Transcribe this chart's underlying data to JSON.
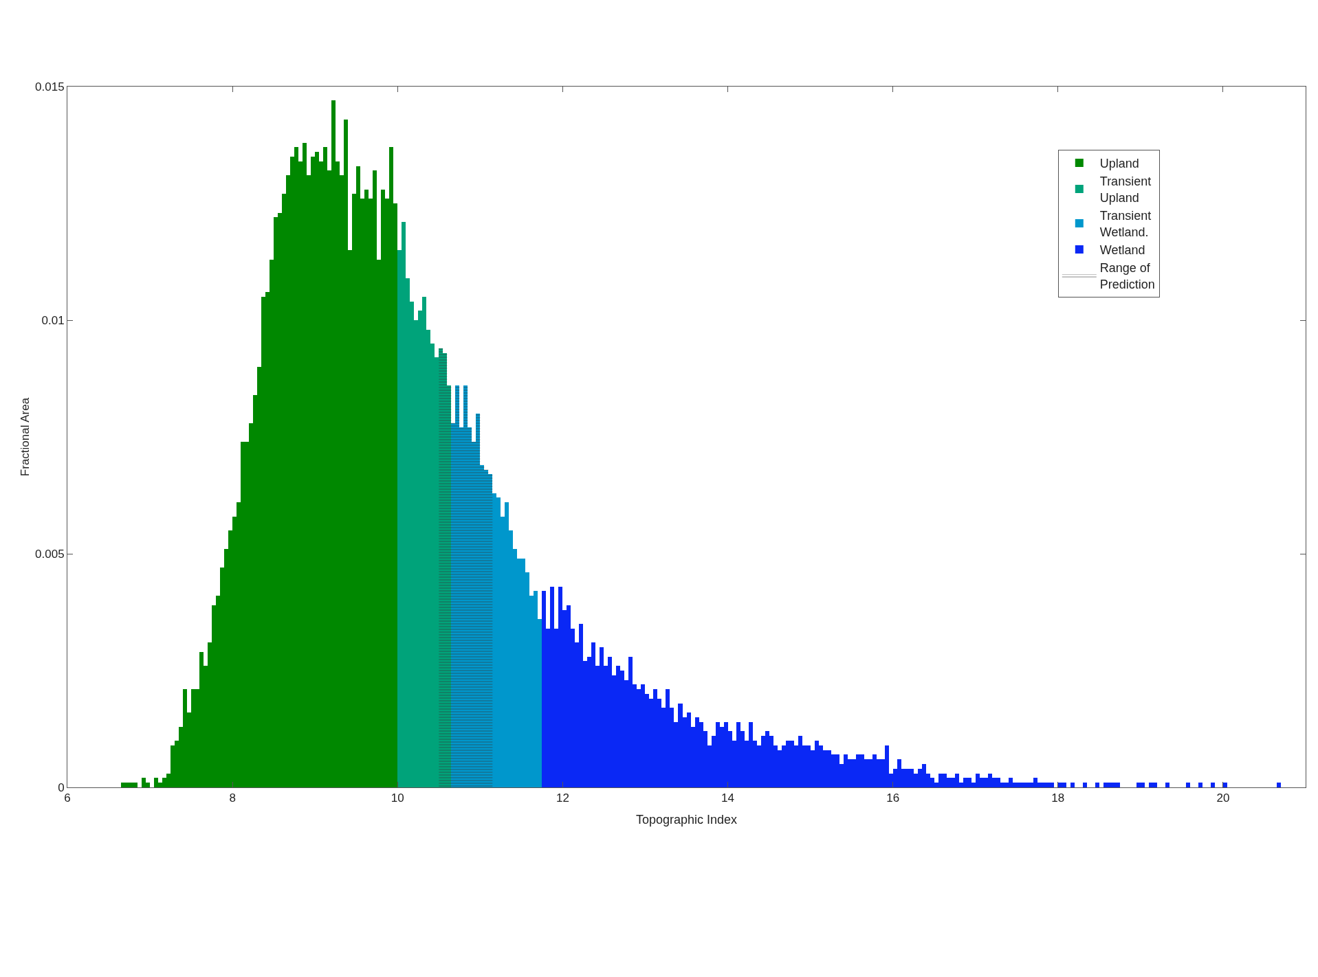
{
  "chart_data": {
    "type": "histogram",
    "xlabel": "Topographic Index",
    "ylabel": "Fractional Area",
    "xlim": [
      6,
      21
    ],
    "xticks": [
      6,
      8,
      10,
      12,
      14,
      16,
      18,
      20
    ],
    "ylim": [
      0,
      0.015
    ],
    "yticks": [
      0,
      0.005,
      0.01,
      0.015
    ],
    "legend": "top right",
    "bins": [
      6.65,
      6.7,
      6.75,
      6.8,
      6.85,
      6.9,
      6.95,
      7.0,
      7.05,
      7.1,
      7.15,
      7.2,
      7.25,
      7.3,
      7.35,
      7.4,
      7.45,
      7.5,
      7.55,
      7.6,
      7.65,
      7.7,
      7.75,
      7.8,
      7.85,
      7.9,
      7.95,
      8.0,
      8.05,
      8.1,
      8.15,
      8.2,
      8.25,
      8.3,
      8.35,
      8.4,
      8.45,
      8.5,
      8.55,
      8.6,
      8.65,
      8.7,
      8.75,
      8.8,
      8.85,
      8.9,
      8.95,
      9.0,
      9.05,
      9.1,
      9.15,
      9.2,
      9.25,
      9.3,
      9.35,
      9.4,
      9.45,
      9.5,
      9.55,
      9.6,
      9.65,
      9.7,
      9.75,
      9.8,
      9.85,
      9.9,
      9.95,
      10.0,
      10.05,
      10.1,
      10.15,
      10.2,
      10.25,
      10.3,
      10.35,
      10.4,
      10.45,
      10.5,
      10.55,
      10.6,
      10.65,
      10.7,
      10.75,
      10.8,
      10.85,
      10.9,
      10.95,
      11.0,
      11.05,
      11.1,
      11.15,
      11.2,
      11.25,
      11.3,
      11.35,
      11.4,
      11.45,
      11.5,
      11.55,
      11.6,
      11.65,
      11.7,
      11.75,
      11.8,
      11.85,
      11.9,
      11.95,
      12.0,
      12.05,
      12.1,
      12.15,
      12.2,
      12.25,
      12.3,
      12.35,
      12.4,
      12.45,
      12.5,
      12.55,
      12.6,
      12.65,
      12.7,
      12.75,
      12.8,
      12.85,
      12.9,
      12.95,
      13.0,
      13.05,
      13.1,
      13.15,
      13.2,
      13.25,
      13.3,
      13.35,
      13.4,
      13.45,
      13.5,
      13.55,
      13.6,
      13.65,
      13.7,
      13.75,
      13.8,
      13.85,
      13.9,
      13.95,
      14.0,
      14.05,
      14.1,
      14.15,
      14.2,
      14.25,
      14.3,
      14.35,
      14.4,
      14.45,
      14.5,
      14.55,
      14.6,
      14.65,
      14.7,
      14.75,
      14.8,
      14.85,
      14.9,
      14.95,
      15.0,
      15.05,
      15.1,
      15.15,
      15.2,
      15.25,
      15.3,
      15.35,
      15.4,
      15.45,
      15.5,
      15.55,
      15.6,
      15.65,
      15.7,
      15.75,
      15.8,
      15.85,
      15.9,
      15.95,
      16.0,
      16.05,
      16.1,
      16.15,
      16.2,
      16.25,
      16.3,
      16.35,
      16.4,
      16.45,
      16.5,
      16.55,
      16.6,
      16.65,
      16.7,
      16.75,
      16.8,
      16.85,
      16.9,
      16.95,
      17.0,
      17.05,
      17.1,
      17.15,
      17.2,
      17.25,
      17.3,
      17.35,
      17.4,
      17.45,
      17.5,
      17.55,
      17.6,
      17.65,
      17.7,
      17.75,
      17.8,
      17.85,
      17.9,
      17.95,
      18.0,
      18.05,
      18.1,
      18.15,
      18.2,
      18.25,
      18.3,
      18.35,
      18.4,
      18.45,
      18.5,
      18.55,
      18.6,
      18.65,
      18.7,
      18.75,
      18.8,
      18.85,
      18.9,
      18.95,
      19.0,
      19.05,
      19.1,
      19.15,
      19.2,
      19.25,
      19.3,
      19.35,
      19.4,
      19.45,
      19.5,
      19.55,
      19.6,
      19.65,
      19.7,
      19.75,
      19.8,
      19.85,
      19.9,
      19.95,
      20.0,
      20.05,
      20.1,
      20.15,
      20.2,
      20.25,
      20.3,
      20.35,
      20.4,
      20.45,
      20.5,
      20.55,
      20.6,
      20.65,
      20.7
    ],
    "series": [
      {
        "name": "Upland",
        "color": "#008800",
        "values": [
          0.0001,
          0.0001,
          0.0001,
          0.0001,
          0.0,
          0.0002,
          0.0001,
          0.0,
          0.0002,
          0.0001,
          0.0002,
          0.0003,
          0.0009,
          0.001,
          0.0013,
          0.0021,
          0.0016,
          0.0021,
          0.0021,
          0.0029,
          0.0026,
          0.0031,
          0.0039,
          0.0041,
          0.0047,
          0.0051,
          0.0055,
          0.0058,
          0.0061,
          0.0074,
          0.0074,
          0.0078,
          0.0084,
          0.009,
          0.0105,
          0.0106,
          0.0113,
          0.0122,
          0.0123,
          0.0127,
          0.0131,
          0.0135,
          0.0137,
          0.0134,
          0.0138,
          0.0131,
          0.0135,
          0.0136,
          0.0134,
          0.0137,
          0.0132,
          0.0147,
          0.0134,
          0.0131,
          0.0143,
          0.0115,
          0.0127,
          0.0133,
          0.0126,
          0.0128,
          0.0126,
          0.0132,
          0.0113,
          0.0128,
          0.0126,
          0.0137,
          0.0125,
          null,
          null,
          null,
          null,
          null,
          null,
          null,
          null,
          null,
          null,
          null,
          null,
          null,
          null,
          null,
          null,
          null,
          null,
          null,
          null,
          null,
          null,
          null,
          null,
          null,
          null,
          null,
          null,
          null,
          null,
          null,
          null,
          null,
          null,
          null,
          null,
          null,
          null,
          null,
          null,
          null,
          null,
          null,
          null,
          null,
          null,
          null,
          null,
          null,
          null,
          null,
          null,
          null,
          null,
          null,
          null,
          null,
          null,
          null,
          null,
          null,
          null,
          null,
          null,
          null,
          null,
          null,
          null,
          null,
          null,
          null,
          null,
          null,
          null,
          null,
          null,
          null,
          null,
          null,
          null,
          null,
          null,
          null,
          null,
          null,
          null,
          null,
          null,
          null,
          null,
          null,
          null,
          null,
          null,
          null,
          null,
          null,
          null,
          null,
          null,
          null,
          null,
          null,
          null,
          null,
          null,
          null,
          null,
          null,
          null,
          null,
          null,
          null,
          null,
          null,
          null,
          null,
          null,
          null,
          null,
          null,
          null,
          null,
          null,
          null,
          null,
          null,
          null,
          null,
          null,
          null,
          null,
          null,
          null,
          null,
          null,
          null,
          null,
          null,
          null,
          null,
          null,
          null,
          null,
          null,
          null,
          null,
          null,
          null,
          null,
          null,
          null,
          null,
          null,
          null,
          null,
          null,
          null,
          null,
          null,
          null,
          null,
          null,
          null,
          null,
          null,
          null,
          null,
          null,
          null,
          null,
          null,
          null,
          null,
          null,
          null,
          null,
          null,
          null,
          null,
          null,
          null,
          null,
          null,
          null,
          null,
          null,
          null,
          null,
          null,
          null,
          null,
          null,
          null,
          null,
          null,
          null,
          null,
          null,
          null,
          null,
          null,
          null,
          null,
          null,
          null,
          null,
          null,
          null,
          null,
          null,
          null,
          null,
          null
        ]
      },
      {
        "name": "Transient Upland",
        "color": "#00a37a",
        "values": [
          null,
          null,
          null,
          null,
          null,
          null,
          null,
          null,
          null,
          null,
          null,
          null,
          null,
          null,
          null,
          null,
          null,
          null,
          null,
          null,
          null,
          null,
          null,
          null,
          null,
          null,
          null,
          null,
          null,
          null,
          null,
          null,
          null,
          null,
          null,
          null,
          null,
          null,
          null,
          null,
          null,
          null,
          null,
          null,
          null,
          null,
          null,
          null,
          null,
          null,
          null,
          null,
          null,
          null,
          null,
          null,
          null,
          null,
          null,
          null,
          null,
          null,
          null,
          null,
          null,
          null,
          null,
          0.0115,
          0.0121,
          0.0109,
          0.0104,
          0.01,
          0.0102,
          0.0105,
          0.0098,
          0.0095,
          0.0092,
          0.0094,
          0.0093,
          0.0086,
          null,
          null,
          null,
          null,
          null,
          null,
          null,
          null,
          null,
          null,
          null,
          null,
          null,
          null,
          null,
          null,
          null,
          null,
          null,
          null,
          null,
          null,
          null,
          null,
          null,
          null,
          null,
          null,
          null,
          null,
          null,
          null,
          null,
          null,
          null,
          null,
          null,
          null,
          null,
          null,
          null,
          null,
          null,
          null,
          null,
          null,
          null,
          null,
          null,
          null,
          null,
          null,
          null,
          null,
          null,
          null,
          null,
          null,
          null,
          null,
          null,
          null,
          null,
          null,
          null,
          null,
          null,
          null,
          null,
          null,
          null,
          null,
          null,
          null,
          null,
          null,
          null,
          null,
          null,
          null,
          null,
          null,
          null,
          null,
          null,
          null,
          null,
          null,
          null,
          null,
          null,
          null,
          null,
          null,
          null,
          null,
          null,
          null,
          null,
          null,
          null,
          null,
          null,
          null,
          null,
          null,
          null,
          null,
          null,
          null,
          null,
          null,
          null,
          null,
          null,
          null,
          null,
          null,
          null,
          null,
          null,
          null,
          null,
          null,
          null,
          null,
          null,
          null,
          null,
          null,
          null,
          null,
          null,
          null,
          null,
          null,
          null,
          null,
          null,
          null,
          null,
          null,
          null,
          null,
          null,
          null,
          null,
          null,
          null,
          null,
          null,
          null,
          null,
          null,
          null,
          null,
          null,
          null,
          null,
          null,
          null,
          null,
          null,
          null,
          null,
          null,
          null,
          null,
          null,
          null,
          null,
          null,
          null,
          null,
          null,
          null,
          null,
          null,
          null,
          null,
          null,
          null,
          null,
          null,
          null,
          null,
          null,
          null,
          null,
          null,
          null,
          null,
          null,
          null,
          null,
          null,
          null,
          null,
          null,
          null,
          null
        ]
      },
      {
        "name": "Transient Wetland.",
        "color": "#0097cc",
        "values": [
          null,
          null,
          null,
          null,
          null,
          null,
          null,
          null,
          null,
          null,
          null,
          null,
          null,
          null,
          null,
          null,
          null,
          null,
          null,
          null,
          null,
          null,
          null,
          null,
          null,
          null,
          null,
          null,
          null,
          null,
          null,
          null,
          null,
          null,
          null,
          null,
          null,
          null,
          null,
          null,
          null,
          null,
          null,
          null,
          null,
          null,
          null,
          null,
          null,
          null,
          null,
          null,
          null,
          null,
          null,
          null,
          null,
          null,
          null,
          null,
          null,
          null,
          null,
          null,
          null,
          null,
          null,
          null,
          null,
          null,
          null,
          null,
          null,
          null,
          null,
          null,
          null,
          null,
          null,
          null,
          0.0078,
          0.0086,
          0.0077,
          0.0086,
          0.0077,
          0.0074,
          0.008,
          0.0069,
          0.0068,
          0.0067,
          0.0063,
          0.0062,
          0.0058,
          0.0061,
          0.0055,
          0.0051,
          0.0049,
          0.0049,
          0.0046,
          0.0041,
          0.0042,
          0.0036,
          null,
          null,
          null,
          null,
          null,
          null,
          null,
          null,
          null,
          null,
          null,
          null,
          null,
          null,
          null,
          null,
          null,
          null,
          null,
          null,
          null,
          null,
          null,
          null,
          null,
          null,
          null,
          null,
          null,
          null,
          null,
          null,
          null,
          null,
          null,
          null,
          null,
          null,
          null,
          null,
          null,
          null,
          null,
          null,
          null,
          null,
          null,
          null,
          null,
          null,
          null,
          null,
          null,
          null,
          null,
          null,
          null,
          null,
          null,
          null,
          null,
          null,
          null,
          null,
          null,
          null,
          null,
          null,
          null,
          null,
          null,
          null,
          null,
          null,
          null,
          null,
          null,
          null,
          null,
          null,
          null,
          null,
          null,
          null,
          null,
          null,
          null,
          null,
          null,
          null,
          null,
          null,
          null,
          null,
          null,
          null,
          null,
          null,
          null,
          null,
          null,
          null,
          null,
          null,
          null,
          null,
          null,
          null,
          null,
          null,
          null,
          null,
          null,
          null,
          null,
          null,
          null,
          null,
          null,
          null,
          null,
          null,
          null,
          null,
          null,
          null,
          null,
          null,
          null,
          null,
          null,
          null,
          null,
          null,
          null,
          null,
          null,
          null,
          null,
          null,
          null,
          null,
          null,
          null,
          null,
          null,
          null,
          null,
          null,
          null,
          null,
          null,
          null,
          null,
          null,
          null,
          null,
          null,
          null,
          null,
          null,
          null,
          null,
          null,
          null,
          null,
          null,
          null,
          null,
          null,
          null,
          null,
          null,
          null,
          null,
          null,
          null,
          null,
          null
        ]
      },
      {
        "name": "Wetland",
        "color": "#0a28f5",
        "values": [
          null,
          null,
          null,
          null,
          null,
          null,
          null,
          null,
          null,
          null,
          null,
          null,
          null,
          null,
          null,
          null,
          null,
          null,
          null,
          null,
          null,
          null,
          null,
          null,
          null,
          null,
          null,
          null,
          null,
          null,
          null,
          null,
          null,
          null,
          null,
          null,
          null,
          null,
          null,
          null,
          null,
          null,
          null,
          null,
          null,
          null,
          null,
          null,
          null,
          null,
          null,
          null,
          null,
          null,
          null,
          null,
          null,
          null,
          null,
          null,
          null,
          null,
          null,
          null,
          null,
          null,
          null,
          null,
          null,
          null,
          null,
          null,
          null,
          null,
          null,
          null,
          null,
          null,
          null,
          null,
          null,
          null,
          null,
          null,
          null,
          null,
          null,
          null,
          null,
          null,
          null,
          null,
          null,
          null,
          null,
          null,
          null,
          null,
          null,
          null,
          null,
          null,
          0.0042,
          0.0034,
          0.0043,
          0.0034,
          0.0043,
          0.0038,
          0.0039,
          0.0034,
          0.0031,
          0.0035,
          0.0027,
          0.0028,
          0.0031,
          0.0026,
          0.003,
          0.0026,
          0.0028,
          0.0024,
          0.0026,
          0.0025,
          0.0023,
          0.0028,
          0.0022,
          0.0021,
          0.0022,
          0.002,
          0.0019,
          0.0021,
          0.0019,
          0.0017,
          0.0021,
          0.0017,
          0.0014,
          0.0018,
          0.0015,
          0.0016,
          0.0013,
          0.0015,
          0.0014,
          0.0012,
          0.0009,
          0.0011,
          0.0014,
          0.0013,
          0.0014,
          0.0012,
          0.001,
          0.0014,
          0.0012,
          0.001,
          0.0014,
          0.001,
          0.0009,
          0.0011,
          0.0012,
          0.0011,
          0.0009,
          0.0008,
          0.0009,
          0.001,
          0.001,
          0.0009,
          0.0011,
          0.0009,
          0.0009,
          0.0008,
          0.001,
          0.0009,
          0.0008,
          0.0008,
          0.0007,
          0.0007,
          0.0005,
          0.0007,
          0.0006,
          0.0006,
          0.0007,
          0.0007,
          0.0006,
          0.0006,
          0.0007,
          0.0006,
          0.0006,
          0.0009,
          0.0003,
          0.0004,
          0.0006,
          0.0004,
          0.0004,
          0.0004,
          0.0003,
          0.0004,
          0.0005,
          0.0003,
          0.0002,
          0.0001,
          0.0003,
          0.0003,
          0.0002,
          0.0002,
          0.0003,
          0.0001,
          0.0002,
          0.0002,
          0.0001,
          0.0003,
          0.0002,
          0.0002,
          0.0003,
          0.0002,
          0.0002,
          0.0001,
          0.0001,
          0.0002,
          0.0001,
          0.0001,
          0.0001,
          0.0001,
          0.0001,
          0.0002,
          0.0001,
          0.0001,
          0.0001,
          0.0001,
          0.0,
          0.0001,
          0.0001,
          0.0,
          0.0001,
          0.0,
          0.0,
          0.0001,
          0.0,
          0.0,
          0.0001,
          0.0,
          0.0001,
          0.0001,
          0.0001,
          0.0001,
          0.0,
          0.0,
          0.0,
          0.0,
          0.0001,
          0.0001,
          0.0,
          0.0001,
          0.0001,
          0.0,
          0.0,
          0.0001,
          0.0,
          0.0,
          0.0,
          0.0,
          0.0001,
          0.0,
          0.0,
          0.0001,
          0.0,
          0.0,
          0.0001,
          0.0,
          0.0,
          0.0001,
          0.0,
          0.0,
          0.0,
          0.0,
          0.0,
          0.0,
          0.0,
          0.0,
          0.0,
          0.0,
          0.0,
          0.0,
          0.0001
        ]
      }
    ],
    "bands": [
      {
        "axis": "x",
        "from": 10.5,
        "to": 11.15,
        "label": "Range of Prediction",
        "color": "#333333"
      }
    ]
  }
}
